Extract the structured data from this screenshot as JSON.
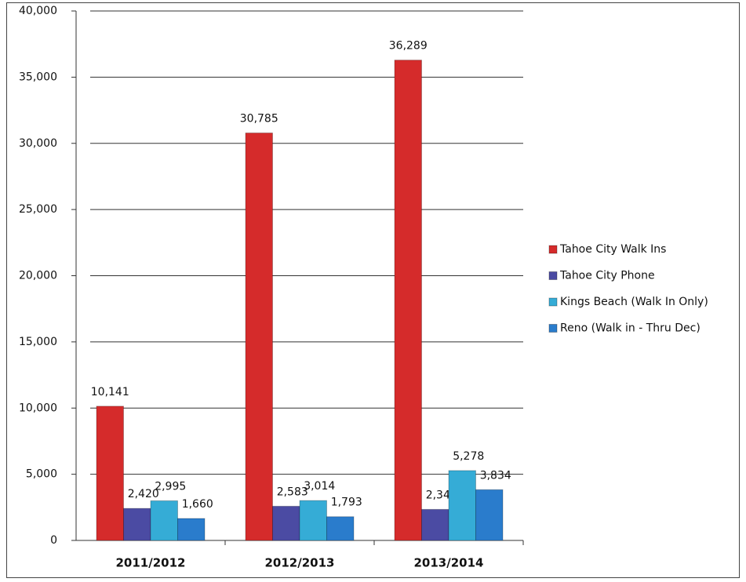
{
  "chart_data": {
    "type": "bar",
    "categories": [
      "2011/2012",
      "2012/2013",
      "2013/2014"
    ],
    "series": [
      {
        "name": "Tahoe City Walk Ins",
        "color": "#d52b2b",
        "values": [
          10141,
          30785,
          36289
        ],
        "value_labels": [
          "10,141",
          "30,785",
          "36,289"
        ]
      },
      {
        "name": "Tahoe City Phone",
        "color": "#4b4ba3",
        "values": [
          2420,
          2583,
          2345
        ],
        "value_labels": [
          "2,420",
          "2,583",
          "2,345"
        ]
      },
      {
        "name": "Kings Beach (Walk In Only)",
        "color": "#35acd6",
        "values": [
          2995,
          3014,
          5278
        ],
        "value_labels": [
          "2,995",
          "3,014",
          "5,278"
        ]
      },
      {
        "name": "Reno (Walk in - Thru Dec)",
        "color": "#2a7ccc",
        "values": [
          1660,
          1793,
          3834
        ],
        "value_labels": [
          "1,660",
          "1,793",
          "3,834"
        ]
      }
    ],
    "ylim": [
      0,
      40000
    ],
    "yticks": [
      0,
      {
        "value": 5000,
        "label": "5,000"
      },
      {
        "value": 10000,
        "label": "10,000"
      },
      {
        "value": 15000,
        "label": "15,000"
      },
      {
        "value": 20000,
        "label": "20,000"
      },
      {
        "value": 25000,
        "label": "25,000"
      },
      {
        "value": 30000,
        "label": "30,000"
      },
      {
        "value": 35000,
        "label": "35,000"
      },
      {
        "value": 40000,
        "label": "40,000"
      }
    ],
    "grid": true,
    "legend": "right"
  }
}
